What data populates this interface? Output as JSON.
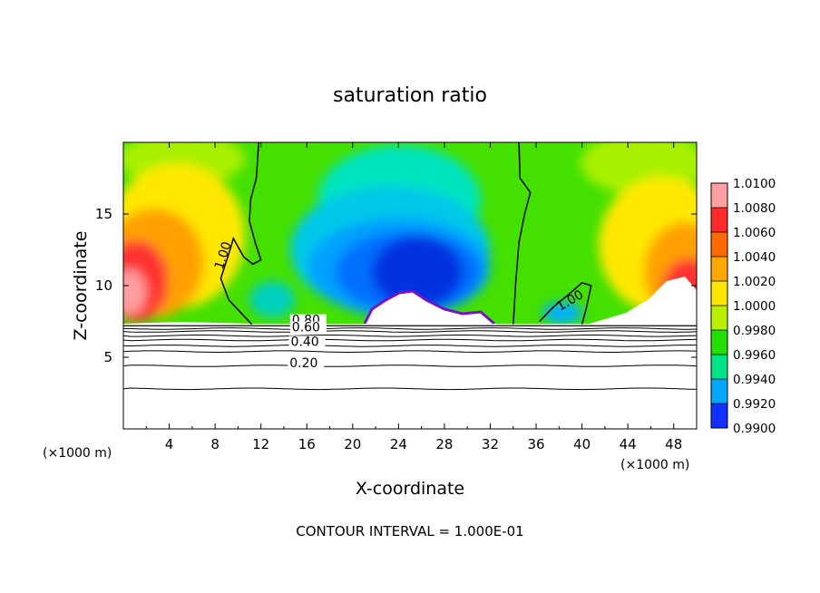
{
  "chart_data": {
    "type": "heatmap",
    "title": "saturation ratio",
    "xlabel": "X-coordinate",
    "ylabel": "Z-coordinate",
    "x_unit_left": "(×1000 m)",
    "x_unit_right": "(×1000 m)",
    "footer": "CONTOUR INTERVAL = 1.000E-01",
    "xlim": [
      0,
      50
    ],
    "ylim": [
      0,
      20
    ],
    "x_ticks": [
      4,
      8,
      12,
      16,
      20,
      24,
      28,
      32,
      36,
      40,
      44,
      48
    ],
    "x_tick_labels": [
      "4",
      "8",
      "12",
      "16",
      "20",
      "24",
      "28",
      "32",
      "36",
      "40",
      "44",
      "48"
    ],
    "y_ticks": [
      5,
      10,
      15
    ],
    "y_tick_labels": [
      "5",
      "10",
      "15"
    ],
    "colorbar": {
      "min": 0.99,
      "max": 1.01,
      "labels": [
        "1.0100",
        "1.0080",
        "1.0060",
        "1.0040",
        "1.0020",
        "1.0000",
        "0.9980",
        "0.9960",
        "0.9940",
        "0.9920",
        "0.9900"
      ],
      "colors": [
        "#ff9f9f",
        "#ff2a2a",
        "#ff6a00",
        "#ffa800",
        "#ffe800",
        "#b8f000",
        "#22e000",
        "#00e488",
        "#00a8ff",
        "#1030ff",
        "#7a10c8"
      ]
    },
    "surface_height": 7.2,
    "contour_lines": {
      "below_surface_z": [
        7.0,
        6.8,
        6.5,
        6.2,
        5.8,
        5.4,
        4.4,
        2.8
      ],
      "labels": [
        {
          "text": "0.80",
          "x": 14.7,
          "z": 7.3
        },
        {
          "text": "0.60",
          "x": 14.7,
          "z": 6.8
        },
        {
          "text": "0.40",
          "x": 14.6,
          "z": 5.8
        },
        {
          "text": "0.20",
          "x": 14.5,
          "z": 4.3
        },
        {
          "text": "1.00",
          "x": 7.8,
          "z": 11.5
        },
        {
          "text": "1.00",
          "x": 37.8,
          "z": 8.5
        }
      ]
    },
    "level_line_1_00": [
      [
        [
          11.8,
          20.0
        ],
        [
          11.6,
          17.5
        ],
        [
          11.1,
          16.0
        ],
        [
          11.0,
          14.5
        ],
        [
          11.5,
          13.0
        ],
        [
          12.0,
          11.8
        ],
        [
          11.3,
          11.5
        ],
        [
          10.5,
          12.0
        ],
        [
          9.6,
          13.3
        ],
        [
          9.3,
          12.5
        ],
        [
          8.5,
          10.5
        ],
        [
          9.2,
          9.0
        ],
        [
          11.2,
          7.3
        ]
      ],
      [
        [
          34.5,
          20.0
        ],
        [
          34.6,
          17.5
        ],
        [
          35.5,
          16.5
        ],
        [
          35.0,
          15.0
        ],
        [
          34.5,
          13.0
        ],
        [
          34.2,
          10.0
        ],
        [
          34.1,
          8.5
        ],
        [
          34.0,
          7.3
        ]
      ],
      [
        [
          40.0,
          7.3
        ],
        [
          40.4,
          8.5
        ],
        [
          40.8,
          10.0
        ],
        [
          40.0,
          10.2
        ],
        [
          39.0,
          9.5
        ],
        [
          37.5,
          8.5
        ],
        [
          36.3,
          7.5
        ]
      ]
    ]
  }
}
